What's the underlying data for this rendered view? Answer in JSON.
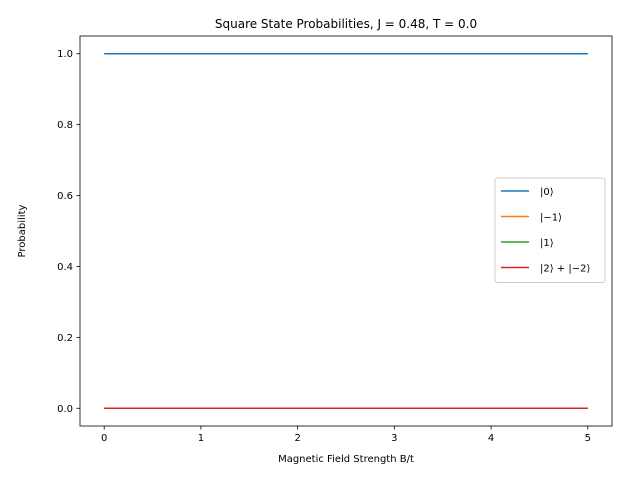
{
  "chart_data": {
    "type": "line",
    "title": "Square State Probabilities, J = 0.48, T = 0.0",
    "xlabel": "Magnetic Field Strength B/t",
    "ylabel": "Probability",
    "xlim": [
      -0.25,
      5.25
    ],
    "ylim": [
      -0.05,
      1.05
    ],
    "xticks": [
      0,
      1,
      2,
      3,
      4,
      5
    ],
    "yticks": [
      0.0,
      0.2,
      0.4,
      0.6,
      0.8,
      1.0
    ],
    "xtick_labels": [
      "0",
      "1",
      "2",
      "3",
      "4",
      "5"
    ],
    "ytick_labels": [
      "0.0",
      "0.2",
      "0.4",
      "0.6",
      "0.8",
      "1.0"
    ],
    "legend_position": "center-right",
    "grid": false,
    "x": [
      0,
      5
    ],
    "series": [
      {
        "name": "|0⟩",
        "color": "#1f77b4",
        "values": [
          1.0,
          1.0
        ]
      },
      {
        "name": "|−1⟩",
        "color": "#ff7f0e",
        "values": [
          0.0,
          0.0
        ]
      },
      {
        "name": "|1⟩",
        "color": "#2ca02c",
        "values": [
          0.0,
          0.0
        ]
      },
      {
        "name": "|2⟩ + |−2⟩",
        "color": "#d62728",
        "values": [
          0.0,
          0.0
        ]
      }
    ]
  }
}
